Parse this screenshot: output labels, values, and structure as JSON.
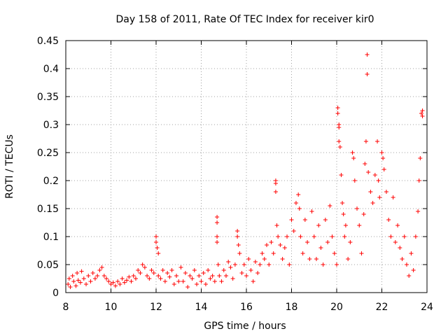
{
  "chart_data": {
    "type": "scatter",
    "title": "Day 158 of 2011, Rate Of TEC Index for receiver kir0",
    "xlabel": "GPS time / hours",
    "ylabel": "ROTI / TECUs",
    "xlim": [
      8,
      24
    ],
    "ylim": [
      0,
      0.45
    ],
    "xticks": [
      8,
      10,
      12,
      14,
      16,
      18,
      20,
      22,
      24
    ],
    "xtick_labels": [
      "8",
      "10",
      "12",
      "14",
      "16",
      "18",
      "20",
      "22",
      "24"
    ],
    "yticks": [
      0,
      0.05,
      0.1,
      0.15,
      0.2,
      0.25,
      0.3,
      0.35,
      0.4,
      0.45
    ],
    "ytick_labels": [
      "0",
      "0.05",
      "0.1",
      "0.15",
      "0.2",
      "0.25",
      "0.3",
      "0.35",
      "0.4",
      "0.45"
    ],
    "grid": true,
    "marker": "+",
    "color": "#ff0000",
    "series": [
      {
        "name": "ROTI",
        "points": [
          [
            8.1,
            0.015
          ],
          [
            8.15,
            0.025
          ],
          [
            8.2,
            0.01
          ],
          [
            8.3,
            0.03
          ],
          [
            8.35,
            0.02
          ],
          [
            8.45,
            0.012
          ],
          [
            8.5,
            0.035
          ],
          [
            8.55,
            0.022
          ],
          [
            8.65,
            0.018
          ],
          [
            8.7,
            0.038
          ],
          [
            8.8,
            0.025
          ],
          [
            8.9,
            0.015
          ],
          [
            9.0,
            0.03
          ],
          [
            9.1,
            0.02
          ],
          [
            9.2,
            0.035
          ],
          [
            9.3,
            0.025
          ],
          [
            9.4,
            0.03
          ],
          [
            9.5,
            0.04
          ],
          [
            9.6,
            0.045
          ],
          [
            9.7,
            0.03
          ],
          [
            9.8,
            0.025
          ],
          [
            9.9,
            0.02
          ],
          [
            10.0,
            0.015
          ],
          [
            10.1,
            0.018
          ],
          [
            10.2,
            0.012
          ],
          [
            10.3,
            0.02
          ],
          [
            10.4,
            0.015
          ],
          [
            10.5,
            0.025
          ],
          [
            10.6,
            0.018
          ],
          [
            10.7,
            0.022
          ],
          [
            10.8,
            0.028
          ],
          [
            10.9,
            0.02
          ],
          [
            11.0,
            0.03
          ],
          [
            11.1,
            0.025
          ],
          [
            11.2,
            0.04
          ],
          [
            11.3,
            0.035
          ],
          [
            11.4,
            0.05
          ],
          [
            11.5,
            0.045
          ],
          [
            11.6,
            0.03
          ],
          [
            11.7,
            0.025
          ],
          [
            11.8,
            0.04
          ],
          [
            11.9,
            0.035
          ],
          [
            12.0,
            0.1
          ],
          [
            12.0,
            0.09
          ],
          [
            12.05,
            0.08
          ],
          [
            12.1,
            0.07
          ],
          [
            12.1,
            0.03
          ],
          [
            12.2,
            0.025
          ],
          [
            12.3,
            0.04
          ],
          [
            12.4,
            0.02
          ],
          [
            12.5,
            0.035
          ],
          [
            12.6,
            0.028
          ],
          [
            12.7,
            0.04
          ],
          [
            12.8,
            0.015
          ],
          [
            12.9,
            0.03
          ],
          [
            13.0,
            0.02
          ],
          [
            13.1,
            0.045
          ],
          [
            13.2,
            0.02
          ],
          [
            13.3,
            0.035
          ],
          [
            13.4,
            0.01
          ],
          [
            13.5,
            0.03
          ],
          [
            13.6,
            0.025
          ],
          [
            13.7,
            0.04
          ],
          [
            13.8,
            0.015
          ],
          [
            13.9,
            0.03
          ],
          [
            14.0,
            0.02
          ],
          [
            14.1,
            0.035
          ],
          [
            14.2,
            0.015
          ],
          [
            14.3,
            0.04
          ],
          [
            14.4,
            0.025
          ],
          [
            14.5,
            0.03
          ],
          [
            14.6,
            0.02
          ],
          [
            14.7,
            0.135
          ],
          [
            14.7,
            0.125
          ],
          [
            14.7,
            0.1
          ],
          [
            14.7,
            0.09
          ],
          [
            14.75,
            0.05
          ],
          [
            14.8,
            0.03
          ],
          [
            14.9,
            0.02
          ],
          [
            15.0,
            0.04
          ],
          [
            15.1,
            0.03
          ],
          [
            15.2,
            0.055
          ],
          [
            15.3,
            0.045
          ],
          [
            15.4,
            0.025
          ],
          [
            15.5,
            0.05
          ],
          [
            15.6,
            0.11
          ],
          [
            15.6,
            0.1
          ],
          [
            15.65,
            0.085
          ],
          [
            15.7,
            0.07
          ],
          [
            15.8,
            0.035
          ],
          [
            15.9,
            0.05
          ],
          [
            16.0,
            0.03
          ],
          [
            16.1,
            0.06
          ],
          [
            16.2,
            0.04
          ],
          [
            16.3,
            0.02
          ],
          [
            16.4,
            0.055
          ],
          [
            16.5,
            0.035
          ],
          [
            16.6,
            0.05
          ],
          [
            16.7,
            0.07
          ],
          [
            16.8,
            0.06
          ],
          [
            16.9,
            0.085
          ],
          [
            17.0,
            0.05
          ],
          [
            17.1,
            0.09
          ],
          [
            17.2,
            0.07
          ],
          [
            17.3,
            0.2
          ],
          [
            17.3,
            0.195
          ],
          [
            17.3,
            0.18
          ],
          [
            17.35,
            0.12
          ],
          [
            17.4,
            0.1
          ],
          [
            17.5,
            0.085
          ],
          [
            17.6,
            0.06
          ],
          [
            17.7,
            0.08
          ],
          [
            17.8,
            0.1
          ],
          [
            17.9,
            0.05
          ],
          [
            18.0,
            0.13
          ],
          [
            18.1,
            0.11
          ],
          [
            18.2,
            0.16
          ],
          [
            18.3,
            0.175
          ],
          [
            18.35,
            0.15
          ],
          [
            18.4,
            0.1
          ],
          [
            18.5,
            0.07
          ],
          [
            18.6,
            0.13
          ],
          [
            18.7,
            0.09
          ],
          [
            18.8,
            0.06
          ],
          [
            18.9,
            0.145
          ],
          [
            19.0,
            0.1
          ],
          [
            19.1,
            0.06
          ],
          [
            19.2,
            0.12
          ],
          [
            19.3,
            0.08
          ],
          [
            19.4,
            0.05
          ],
          [
            19.5,
            0.13
          ],
          [
            19.6,
            0.09
          ],
          [
            19.7,
            0.155
          ],
          [
            19.8,
            0.1
          ],
          [
            19.9,
            0.07
          ],
          [
            20.0,
            0.05
          ],
          [
            20.05,
            0.33
          ],
          [
            20.05,
            0.32
          ],
          [
            20.1,
            0.3
          ],
          [
            20.1,
            0.295
          ],
          [
            20.1,
            0.27
          ],
          [
            20.15,
            0.26
          ],
          [
            20.2,
            0.21
          ],
          [
            20.25,
            0.16
          ],
          [
            20.3,
            0.14
          ],
          [
            20.35,
            0.1
          ],
          [
            20.4,
            0.12
          ],
          [
            20.5,
            0.06
          ],
          [
            20.6,
            0.09
          ],
          [
            20.7,
            0.25
          ],
          [
            20.75,
            0.24
          ],
          [
            20.8,
            0.2
          ],
          [
            20.9,
            0.15
          ],
          [
            21.0,
            0.12
          ],
          [
            21.1,
            0.07
          ],
          [
            21.2,
            0.14
          ],
          [
            21.25,
            0.23
          ],
          [
            21.3,
            0.27
          ],
          [
            21.35,
            0.425
          ],
          [
            21.35,
            0.39
          ],
          [
            21.4,
            0.215
          ],
          [
            21.5,
            0.18
          ],
          [
            21.6,
            0.16
          ],
          [
            21.7,
            0.21
          ],
          [
            21.8,
            0.27
          ],
          [
            21.85,
            0.2
          ],
          [
            21.9,
            0.17
          ],
          [
            22.0,
            0.25
          ],
          [
            22.05,
            0.24
          ],
          [
            22.1,
            0.22
          ],
          [
            22.2,
            0.18
          ],
          [
            22.3,
            0.13
          ],
          [
            22.4,
            0.1
          ],
          [
            22.5,
            0.17
          ],
          [
            22.6,
            0.09
          ],
          [
            22.7,
            0.12
          ],
          [
            22.8,
            0.08
          ],
          [
            22.9,
            0.06
          ],
          [
            23.0,
            0.1
          ],
          [
            23.1,
            0.05
          ],
          [
            23.2,
            0.03
          ],
          [
            23.3,
            0.07
          ],
          [
            23.4,
            0.04
          ],
          [
            23.5,
            0.1
          ],
          [
            23.6,
            0.145
          ],
          [
            23.65,
            0.2
          ],
          [
            23.7,
            0.24
          ],
          [
            23.75,
            0.32
          ],
          [
            23.8,
            0.325
          ],
          [
            23.8,
            0.315
          ]
        ]
      }
    ]
  }
}
